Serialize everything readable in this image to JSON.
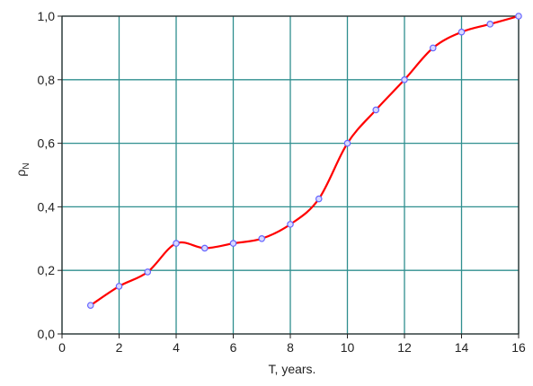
{
  "chart_data": {
    "type": "line",
    "title": "",
    "xlabel": "T, years.",
    "ylabel": {
      "symbol": "ρ",
      "subscript": "N"
    },
    "xlim": [
      0,
      16
    ],
    "ylim": [
      0,
      1.0
    ],
    "xticks": [
      0,
      2,
      4,
      6,
      8,
      10,
      12,
      14,
      16
    ],
    "yticks": [
      0.0,
      0.2,
      0.4,
      0.6,
      0.8,
      1.0
    ],
    "xtick_labels": [
      "0",
      "2",
      "4",
      "6",
      "8",
      "10",
      "12",
      "14",
      "16"
    ],
    "ytick_labels": [
      "0,0",
      "0,2",
      "0,4",
      "0,6",
      "0,8",
      "1,0"
    ],
    "grid": true,
    "series": [
      {
        "x": [
          1,
          2,
          3,
          4,
          5,
          6,
          7,
          8,
          9,
          10,
          11,
          12,
          13,
          14,
          15,
          16
        ],
        "y": [
          0.09,
          0.15,
          0.195,
          0.285,
          0.27,
          0.285,
          0.3,
          0.345,
          0.425,
          0.6,
          0.705,
          0.8,
          0.9,
          0.95,
          0.975,
          1.0
        ],
        "line_color": "#ff0000",
        "marker_color": "#6666ff"
      }
    ],
    "colors": {
      "grid": "#2f8f8f",
      "frame": "#222222",
      "background": "#ffffff"
    }
  }
}
